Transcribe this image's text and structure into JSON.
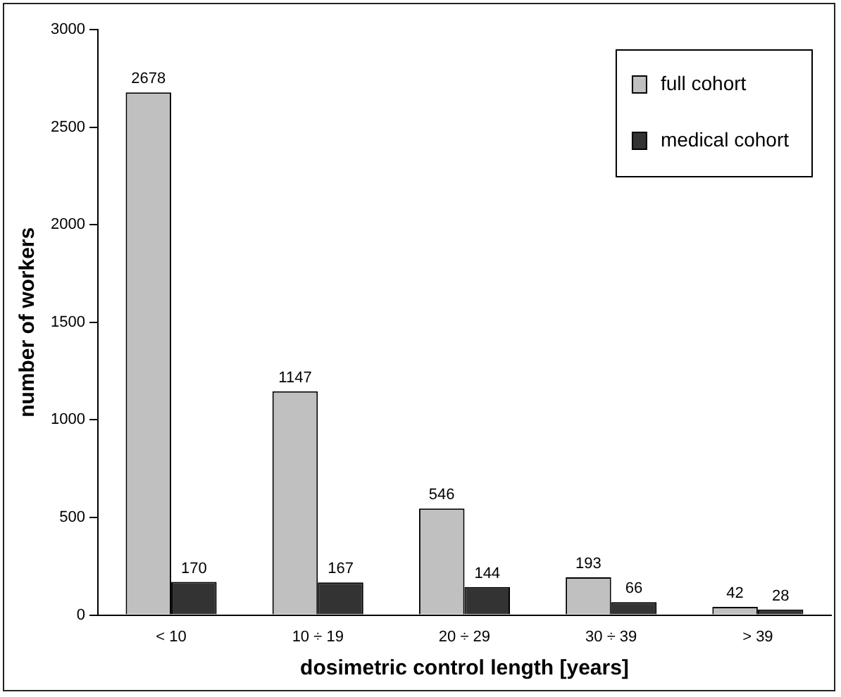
{
  "chart_data": {
    "type": "bar",
    "xlabel": "dosimetric control length [years]",
    "ylabel": "number of workers",
    "categories": [
      "< 10",
      "10 ÷ 19",
      "20 ÷ 29",
      "30 ÷ 39",
      "> 39"
    ],
    "series": [
      {
        "name": "full cohort",
        "color": "#c0c0c0",
        "values": [
          2678,
          1147,
          546,
          193,
          42
        ]
      },
      {
        "name": "medical cohort",
        "color": "#333333",
        "values": [
          170,
          167,
          144,
          66,
          28
        ]
      }
    ],
    "ylim": [
      0,
      3000
    ],
    "yticks": [
      0,
      500,
      1000,
      1500,
      2000,
      2500,
      3000
    ],
    "grid": false,
    "legend": "top right",
    "data_labels": true
  }
}
